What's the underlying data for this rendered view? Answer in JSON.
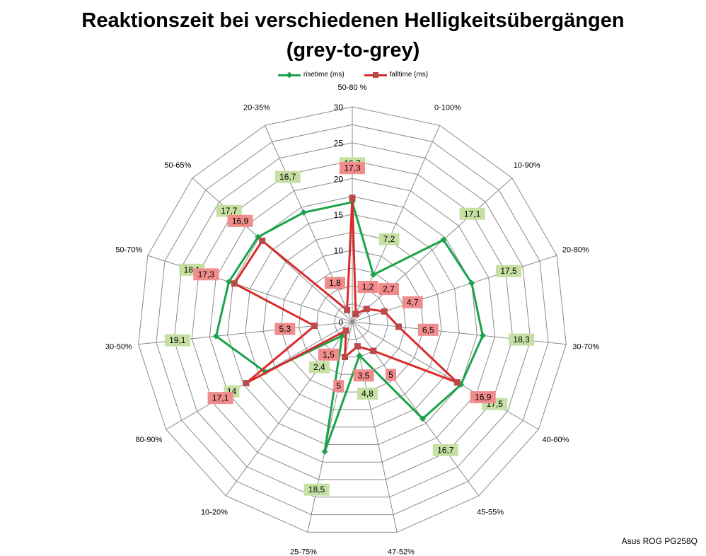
{
  "title_line1": "Reaktionszeit bei verschiedenen Helligkeitsübergängen",
  "title_line2": "(grey-to-grey)",
  "footer": "Asus ROG PG258Q",
  "chart_data": {
    "type": "radar",
    "categories": [
      "50-80 %",
      "0-100%",
      "10-90%",
      "20-80%",
      "30-70%",
      "40-60%",
      "45-55%",
      "47-52%",
      "25-75%",
      "10-20%",
      "80-90%",
      "30-50%",
      "50-70%",
      "50-65%",
      "20-35%"
    ],
    "series": [
      {
        "name": "risetime (ms)",
        "color": "#1aa34a",
        "label_bg": "#c6e0a4",
        "values": [
          16.7,
          7.2,
          17.1,
          17.5,
          18.3,
          17.5,
          16.7,
          4.8,
          18.5,
          2.4,
          14,
          19.1,
          18.1,
          17.7,
          16.7
        ],
        "labels": [
          "16,7",
          "7,2",
          "17,1",
          "17,5",
          "18,3",
          "17,5",
          "16,7",
          "4,8",
          "18,5",
          "2,4",
          "14",
          "19,1",
          "18,1",
          "17,7",
          "16,7"
        ]
      },
      {
        "name": "falltime (ms)",
        "color": "#d92b2b",
        "label_bg": "#f08c8c",
        "values": [
          17.3,
          1.2,
          2.7,
          4.7,
          6.5,
          16.9,
          5,
          3.5,
          5,
          1.5,
          17.1,
          5.3,
          17.3,
          16.9,
          1.8
        ],
        "labels": [
          "17,3",
          "1,2",
          "2,7",
          "4,7",
          "6,5",
          "16,9",
          "5",
          "3,5",
          "5",
          "1,5",
          "17,1",
          "5,3",
          "17,3",
          "16,9",
          "1,8"
        ]
      }
    ],
    "ticks": [
      "0",
      "5",
      "10",
      "15",
      "20",
      "25",
      "30"
    ],
    "rmax": 30,
    "grid": true,
    "legend_position": "top"
  }
}
